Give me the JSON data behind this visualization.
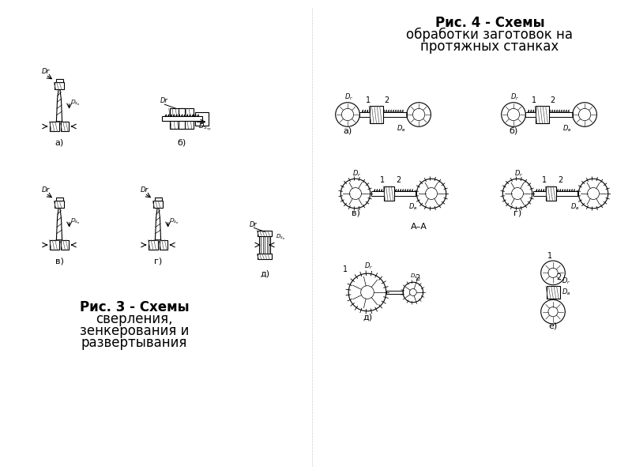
{
  "background_color": "#ffffff",
  "fig3_title_line1": "Рис. 3 - Схемы",
  "fig3_title_line2": "сверления,",
  "fig3_title_line3": "зенкерования и",
  "fig3_title_line4": "развертывания",
  "fig4_title_line1": "Рис. 4 - Схемы",
  "fig4_title_line2": "обработки заготовок на",
  "fig4_title_line3": "протяжных станках",
  "fig3_labels": [
    "а)",
    "б)",
    "в)",
    "г)",
    "д)"
  ],
  "fig4_labels": [
    "а)",
    "б)",
    "в)",
    "г)",
    "д)",
    "е)"
  ],
  "text_color": "#000000",
  "hatch_color": "#555555",
  "line_color": "#000000"
}
